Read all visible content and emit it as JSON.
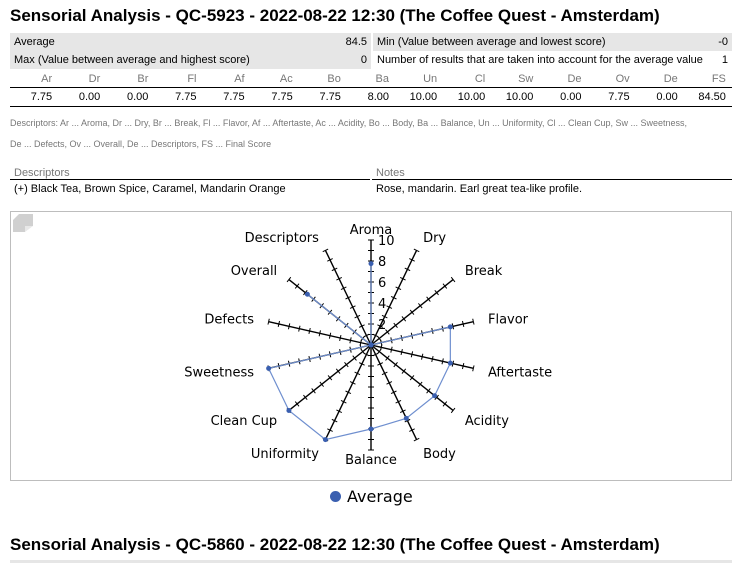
{
  "report": {
    "title": "Sensorial Analysis - QC-5923 - 2022-08-22 12:30 (The Coffee Quest - Amsterdam)",
    "summary": [
      {
        "left_label": "Average",
        "left_value": "84.5",
        "right_label": "Min (Value between average and lowest score)",
        "right_value": "-0"
      },
      {
        "left_label": "Max (Value between average and highest score)",
        "left_value": "0",
        "right_label": "Number of results that are taken into account for the average value",
        "right_value": "1"
      }
    ],
    "score_headers": [
      "Ar",
      "Dr",
      "Br",
      "Fl",
      "Af",
      "Ac",
      "Bo",
      "Ba",
      "Un",
      "Cl",
      "Sw",
      "De",
      "Ov",
      "De",
      "FS"
    ],
    "score_values": [
      "7.75",
      "0.00",
      "0.00",
      "7.75",
      "7.75",
      "7.75",
      "7.75",
      "8.00",
      "10.00",
      "10.00",
      "10.00",
      "0.00",
      "7.75",
      "0.00",
      "84.50"
    ],
    "abbrev_line1": "Descriptors: Ar ... Aroma, Dr ... Dry, Br ... Break, Fl ... Flavor, Af ... Aftertaste, Ac ... Acidity, Bo ... Body, Ba ... Balance, Un ... Uniformity, Cl ... Clean Cup, Sw ... Sweetness,",
    "abbrev_line2": "De ... Defects, Ov ... Overall, De ... Descriptors, FS ... Final Score",
    "descriptors_header": "Descriptors",
    "notes_header": "Notes",
    "descriptors_value": "(+) Black Tea, Brown Spice, Caramel, Mandarin Orange",
    "notes_value": "Rose, mandarin. Earl great tea-like profile."
  },
  "chart_data": {
    "type": "radar",
    "categories": [
      "Aroma",
      "Dry",
      "Break",
      "Flavor",
      "Aftertaste",
      "Acidity",
      "Body",
      "Balance",
      "Uniformity",
      "Clean Cup",
      "Sweetness",
      "Defects",
      "Overall",
      "Descriptors"
    ],
    "series": [
      {
        "name": "Average",
        "values": [
          7.75,
          0,
          0,
          7.75,
          7.75,
          7.75,
          7.75,
          8,
          10,
          10,
          10,
          0,
          7.75,
          0
        ],
        "color": "#3a5fb0"
      }
    ],
    "range": [
      0,
      10
    ],
    "ticks": [
      "2",
      "4",
      "6",
      "8",
      "10"
    ],
    "legend_position": "bottom"
  },
  "next_section": {
    "title": "Sensorial Analysis - QC-5860 - 2022-08-22 12:30 (The Coffee Quest - Amsterdam)"
  }
}
